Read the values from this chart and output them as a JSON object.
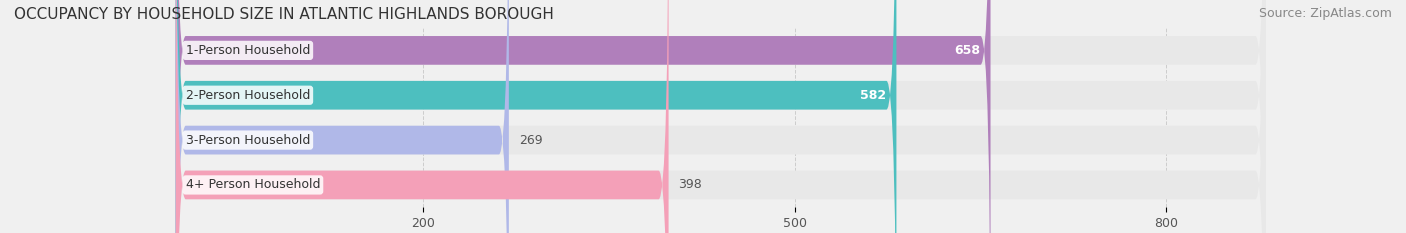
{
  "title": "OCCUPANCY BY HOUSEHOLD SIZE IN ATLANTIC HIGHLANDS BOROUGH",
  "source": "Source: ZipAtlas.com",
  "categories": [
    "1-Person Household",
    "2-Person Household",
    "3-Person Household",
    "4+ Person Household"
  ],
  "values": [
    658,
    582,
    269,
    398
  ],
  "bar_colors": [
    "#b07fbb",
    "#4dbfbf",
    "#b0b8e8",
    "#f4a0b8"
  ],
  "label_bg_color": "#ffffff",
  "background_color": "#f0f0f0",
  "bar_bg_color": "#e8e8e8",
  "xlim": [
    0,
    880
  ],
  "xticks": [
    200,
    500,
    800
  ],
  "title_fontsize": 11,
  "source_fontsize": 9,
  "label_fontsize": 9,
  "value_fontsize": 9,
  "tick_fontsize": 9
}
